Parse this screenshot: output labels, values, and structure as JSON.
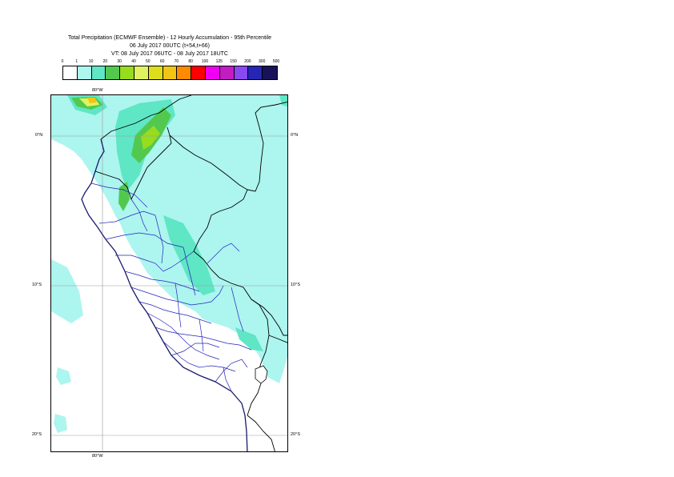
{
  "title": {
    "line1": "Total Precipitation (ECMWF Ensemble) - 12 Hourly Accumulation - 95th Percentile",
    "line2": "06 July 2017 00UTC (t+54,t+66)",
    "line3": "VT: 08 July 2017 06UTC - 08 July 2017 18UTC"
  },
  "legend": {
    "labels": [
      "0",
      "1",
      "10",
      "20",
      "30",
      "40",
      "50",
      "60",
      "70",
      "80",
      "100",
      "125",
      "150",
      "200",
      "300",
      "500"
    ],
    "colors": [
      "#ffffff",
      "#adf5ef",
      "#5fe6c4",
      "#52c94e",
      "#98dc1f",
      "#e0f25f",
      "#dede1a",
      "#f2c414",
      "#ff8a00",
      "#ff0000",
      "#f000f0",
      "#c21cc2",
      "#8a48f2",
      "#2626b4",
      "#18125a"
    ]
  },
  "map": {
    "lon_labels": {
      "top": "80°W",
      "bottom": "80°W"
    },
    "lat_labels": {
      "north0_left": "0°N",
      "north0_right": "0°N",
      "s10_left": "10°S",
      "s10_right": "10°S",
      "s20_left": "20°S",
      "s20_right": "20°S"
    }
  }
}
